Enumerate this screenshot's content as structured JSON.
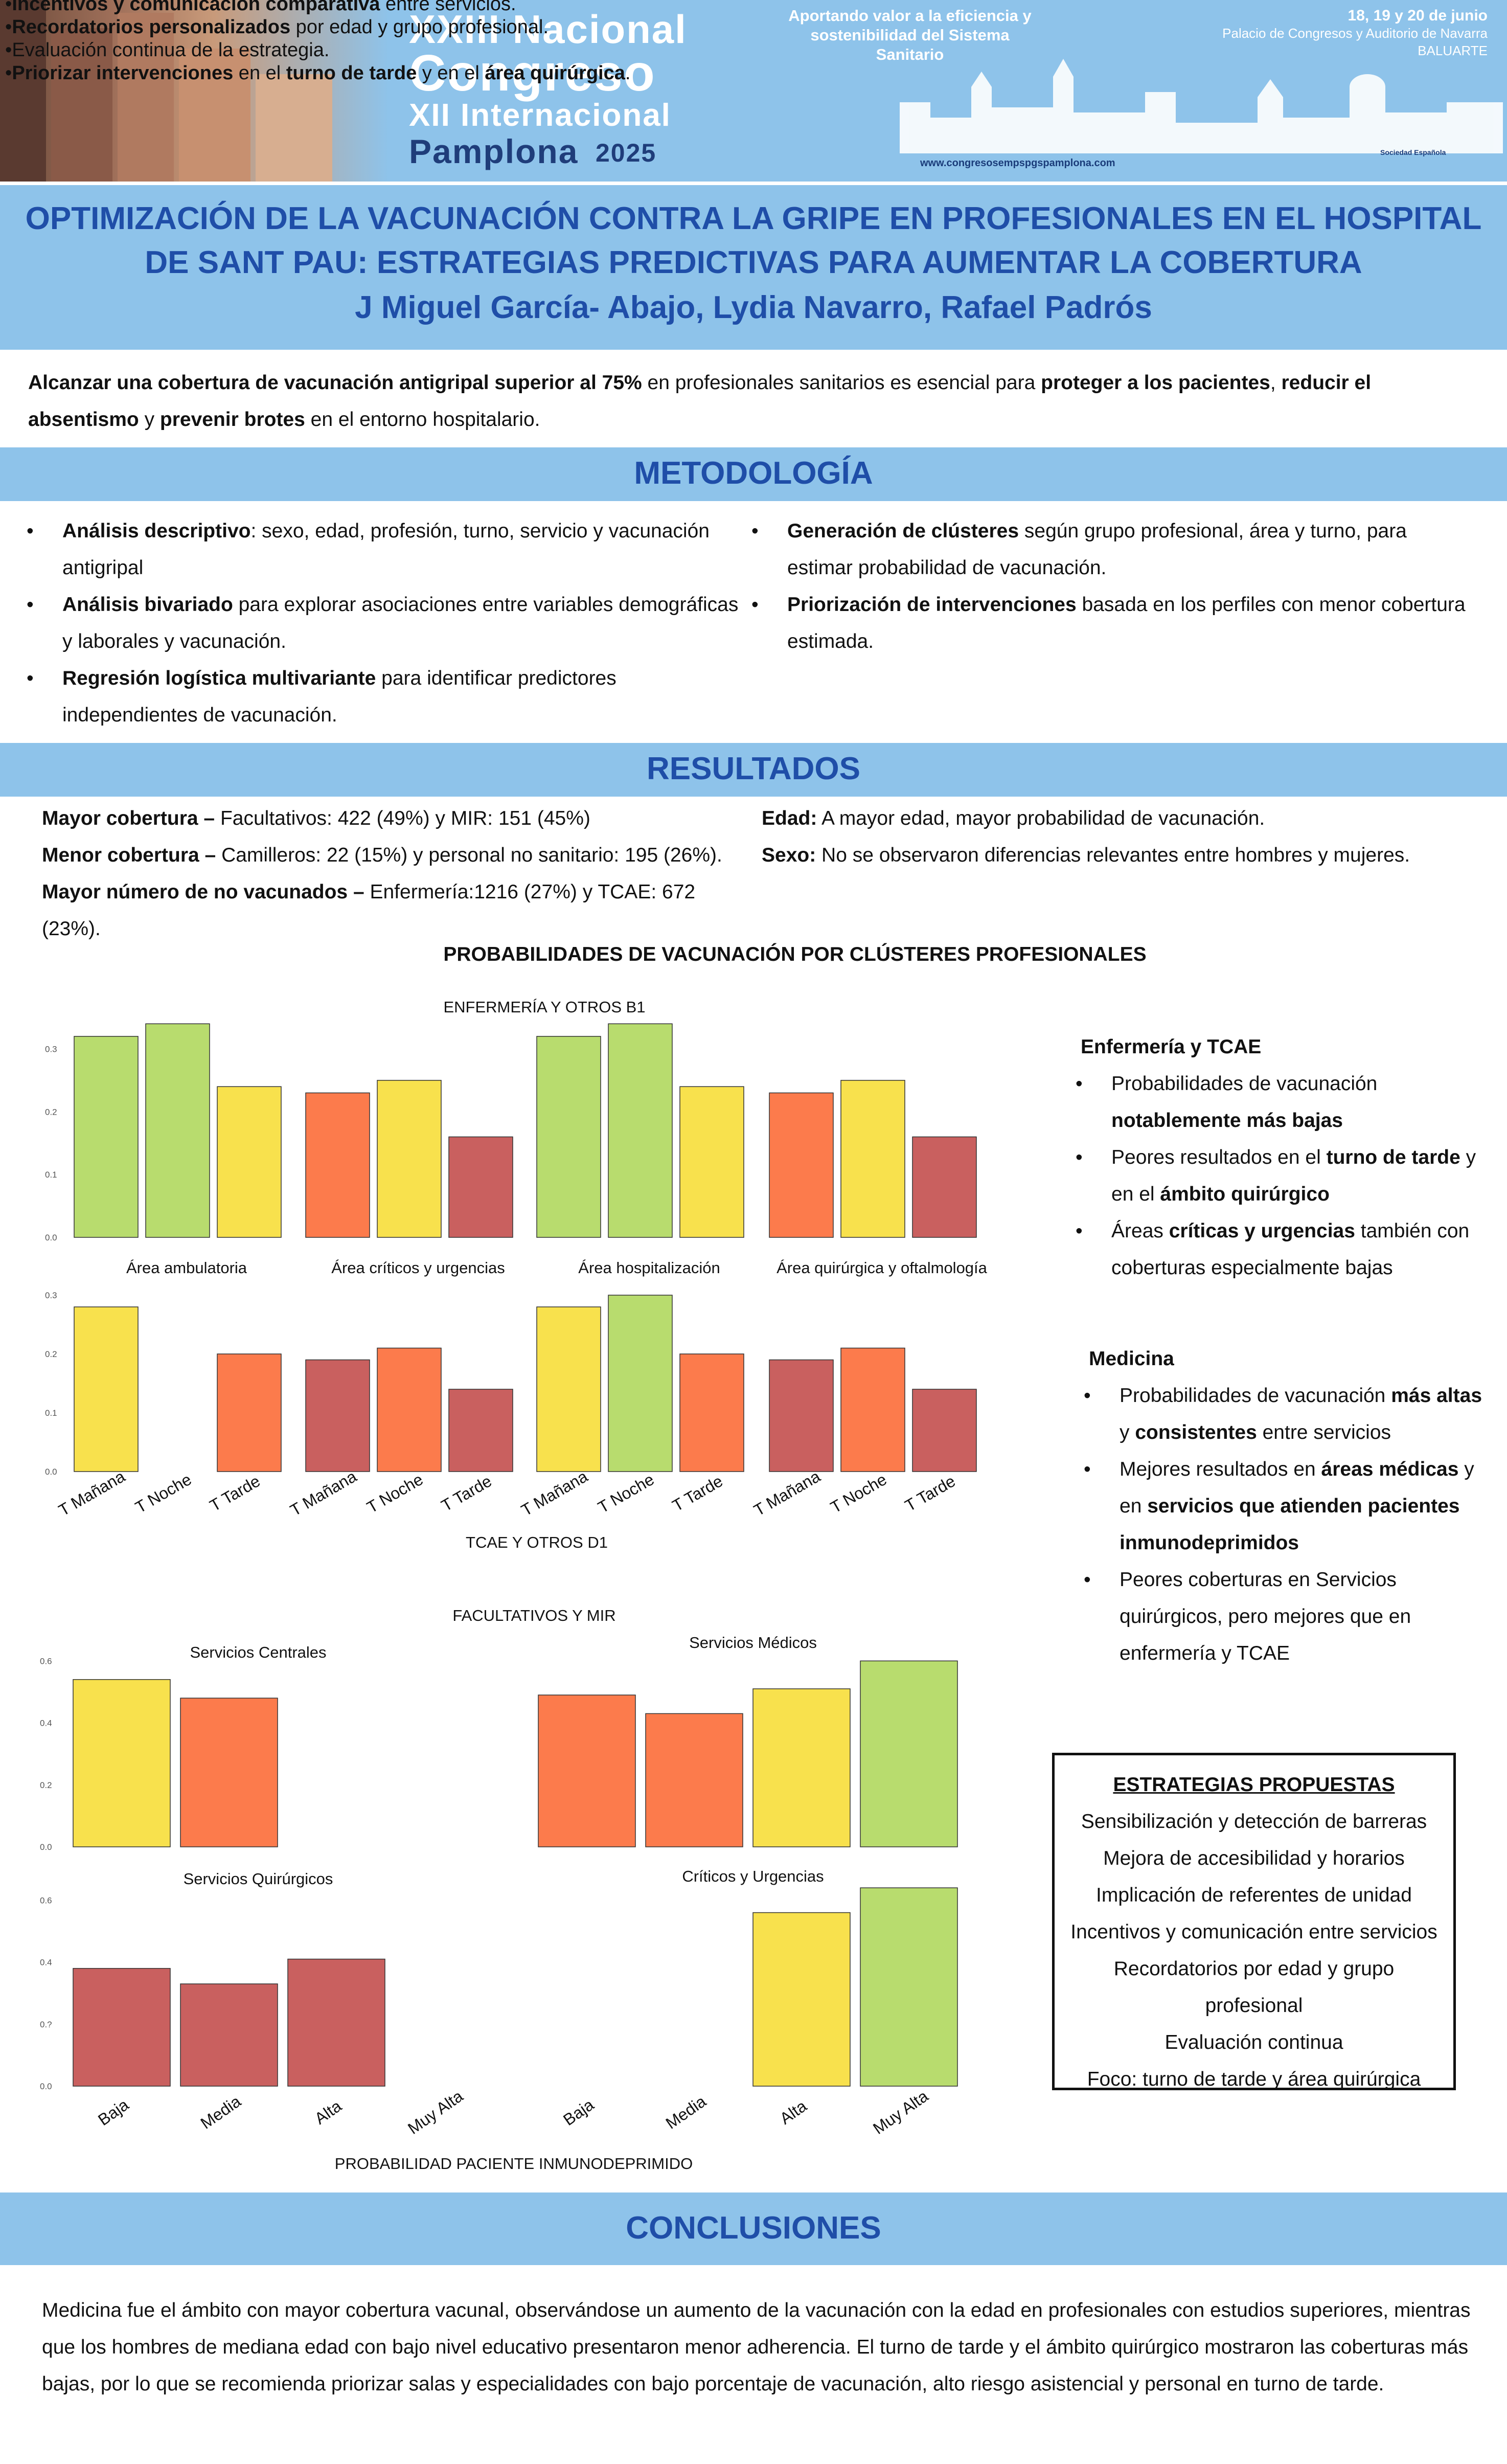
{
  "banner": {
    "overlay_lines": [
      {
        "pre": "•",
        "bold": "Incentivos y comunicación comparativa",
        "post": " entre servicios."
      },
      {
        "pre": "•",
        "bold": "Recordatorios personalizados",
        "post": " por edad y grupo profesional."
      },
      {
        "pre": "•",
        "bold": "",
        "post": "Evaluación continua de la estrategia."
      },
      {
        "pre": "•",
        "bold": "Priorizar intervenciones",
        "post": " en el ",
        "bold2": "turno de tarde",
        "post2": " y en el ",
        "bold3": "área quirúrgica",
        "post3": "."
      }
    ],
    "congress_words": [
      "XXIII Nacional",
      "Congreso",
      "XII Internacional",
      "Pamplona",
      "2025"
    ],
    "slogan": "Aportando valor a la eficiencia y sostenibilidad del Sistema Sanitario",
    "dates": "18, 19 y 20 de junio",
    "venue": "Palacio de Congresos y Auditorio de Navarra BALUARTE",
    "website": "www.congresosempspgspamplona.com",
    "society": "Sociedad Española"
  },
  "title": "OPTIMIZACIÓN DE LA VACUNACIÓN CONTRA LA GRIPE EN PROFESIONALES EN EL HOSPITAL DE SANT PAU: ESTRATEGIAS PREDICTIVAS PARA AUMENTAR LA COBERTURA",
  "authors": "J Miguel García- Abajo, Lydia Navarro, Rafael Padrós",
  "intro": {
    "t1": "Alcanzar una cobertura de vacunación antigripal superior al 75%",
    "t2": " en profesionales sanitarios es esencial para ",
    "t3": "proteger a los pacientes",
    "t4": ", ",
    "t5": "reducir el absentismo",
    "t6": " y ",
    "t7": "prevenir brotes",
    "t8": " en el entorno hospitalario."
  },
  "methodology": {
    "heading": "METODOLOGÍA",
    "left": [
      {
        "bold": "Análisis descriptivo",
        "text": ": sexo, edad, profesión, turno, servicio y vacunación antigripal"
      },
      {
        "bold": "Análisis bivariado",
        "text": " para explorar asociaciones entre variables demográficas y laborales y vacunación."
      },
      {
        "bold": "Regresión logística multivariante",
        "text": " para identificar predictores independientes de vacunación."
      }
    ],
    "right": [
      {
        "bold": "Generación de clústeres",
        "text": " según grupo profesional, área y turno, para estimar probabilidad de vacunación."
      },
      {
        "bold": "Priorización de intervenciones",
        "text": " basada en los perfiles con menor cobertura estimada."
      }
    ]
  },
  "results": {
    "heading": "RESULTADOS",
    "left": [
      {
        "bold": "Mayor cobertura – ",
        "text": "Facultativos: 422 (49%) y MIR: 151 (45%)"
      },
      {
        "bold": "Menor cobertura – ",
        "text": "Camilleros: 22 (15%) y personal no sanitario: 195 (26%)."
      },
      {
        "bold": "Mayor número de no vacunados – ",
        "text": "Enfermería:1216 (27%) y TCAE: 672 (23%)."
      }
    ],
    "right": [
      {
        "bold": "Edad:",
        "text": " A mayor edad, mayor probabilidad de vacunación."
      },
      {
        "bold": "Sexo:",
        "text": " No se observaron diferencias relevantes entre hombres y mujeres."
      }
    ],
    "chart_section_title": "PROBABILIDADES DE VACUNACIÓN POR CLÚSTERES PROFESIONALES"
  },
  "chart_data": [
    {
      "type": "bar",
      "title": "ENFERMERÍA Y OTROS B1",
      "panels": [
        "Área ambulatoria",
        "Área críticos y urgencias",
        "Área hospitalización",
        "Área quirúrgica y oftalmología"
      ],
      "categories": [
        "T Mañana",
        "T Noche",
        "T Tarde"
      ],
      "values": [
        [
          0.32,
          0.34,
          0.24
        ],
        [
          0.23,
          0.25,
          0.16
        ],
        [
          0.32,
          0.34,
          0.24
        ],
        [
          0.23,
          0.25,
          0.16
        ]
      ],
      "colors": [
        [
          "#b8dc6e",
          "#b8dc6e",
          "#f8e14d"
        ],
        [
          "#fc7b4c",
          "#f8e14d",
          "#c9605f"
        ],
        [
          "#b8dc6e",
          "#b8dc6e",
          "#f8e14d"
        ],
        [
          "#fc7b4c",
          "#f8e14d",
          "#c9605f"
        ]
      ],
      "yticks": [
        "0.0",
        "0.1",
        "0.2",
        "0.3"
      ],
      "ylim": [
        0,
        0.35
      ]
    },
    {
      "type": "bar",
      "title": "TCAE Y OTROS D1",
      "categories": [
        "T Mañana",
        "T Noche",
        "T Tarde"
      ],
      "values": [
        [
          0.28,
          null,
          0.2
        ],
        [
          0.19,
          0.21,
          0.14
        ],
        [
          0.28,
          0.3,
          0.2
        ],
        [
          0.19,
          0.21,
          0.14
        ]
      ],
      "colors": [
        [
          "#f8e14d",
          "#f8e14d",
          "#fc7b4c"
        ],
        [
          "#c9605f",
          "#fc7b4c",
          "#c9605f"
        ],
        [
          "#f8e14d",
          "#b8dc6e",
          "#fc7b4c"
        ],
        [
          "#c9605f",
          "#fc7b4c",
          "#c9605f"
        ]
      ],
      "yticks": [
        "0.0",
        "0.1",
        "0.2",
        "0.3"
      ],
      "ylim": [
        0,
        0.32
      ]
    },
    {
      "type": "bar",
      "title": "FACULTATIVOS Y MIR",
      "xlabel": "PROBABILIDAD PACIENTE INMUNODEPRIMIDO",
      "panels": [
        "Servicios Centrales",
        "Servicios Médicos",
        "Servicios Quirúrgicos",
        "Críticos y Urgencias"
      ],
      "categories": [
        "Baja",
        "Media",
        "Alta",
        "Muy Alta"
      ],
      "values": [
        [
          0.54,
          0.48,
          null,
          null
        ],
        [
          0.49,
          0.43,
          0.51,
          0.6
        ],
        [
          0.38,
          0.33,
          0.41,
          null
        ],
        [
          null,
          null,
          0.56,
          0.64
        ]
      ],
      "colors": [
        [
          "#f8e14d",
          "#fc7b4c",
          "",
          ""
        ],
        [
          "#fc7b4c",
          "#fc7b4c",
          "#f8e14d",
          "#b8dc6e"
        ],
        [
          "#c9605f",
          "#c9605f",
          "#c9605f",
          ""
        ],
        [
          "",
          "",
          "#f8e14d",
          "#b8dc6e"
        ]
      ],
      "yticks": [
        "0.0",
        "0.2",
        "0.4",
        "0.6"
      ],
      "yticks_lower": [
        "0.0",
        "0.?",
        "0.4",
        "0.6"
      ],
      "ylim": [
        0,
        0.66
      ]
    }
  ],
  "side": {
    "enf_title": "Enfermería y TCAE",
    "enf_items": [
      [
        {
          "t": "Probabilidades de vacunación "
        },
        {
          "b": "notablemente más bajas"
        }
      ],
      [
        {
          "t": "Peores resultados en el "
        },
        {
          "b": "turno de tarde"
        },
        {
          "t": " y en el "
        },
        {
          "b": "ámbito quirúrgico"
        }
      ],
      [
        {
          "t": "Áreas "
        },
        {
          "b": "críticas y urgencias"
        },
        {
          "t": " también con coberturas especialmente bajas"
        }
      ]
    ],
    "med_title": "Medicina",
    "med_items": [
      [
        {
          "t": "Probabilidades de vacunación "
        },
        {
          "b": "más altas"
        },
        {
          "t": " y "
        },
        {
          "b": "consistentes"
        },
        {
          "t": " entre servicios"
        }
      ],
      [
        {
          "t": "Mejores resultados en "
        },
        {
          "b": "áreas médicas"
        },
        {
          "t": " y en "
        },
        {
          "b": "servicios que atienden pacientes inmunodeprimidos"
        }
      ],
      [
        {
          "t": "Peores coberturas en Servicios quirúrgicos, pero mejores que en enfermería y TCAE"
        }
      ]
    ]
  },
  "strategies": {
    "title": "ESTRATEGIAS PROPUESTAS",
    "items": [
      "Sensibilización y detección de barreras",
      "Mejora de accesibilidad y horarios",
      "Implicación de referentes de unidad",
      "Incentivos y comunicación entre servicios",
      "Recordatorios por edad y grupo profesional",
      "Evaluación continua",
      "Foco: turno de tarde y área quirúrgica"
    ]
  },
  "conclusions": {
    "heading": "CONCLUSIONES",
    "text": "Medicina fue el ámbito con mayor cobertura vacunal, observándose un aumento de la vacunación con la edad en profesionales con estudios superiores, mientras que los hombres de mediana edad con bajo nivel educativo presentaron menor adherencia. El turno de tarde y el ámbito quirúrgico mostraron las coberturas más bajas, por lo que se recomienda priorizar salas y especialidades con bajo porcentaje de vacunación, alto riesgo asistencial y personal en turno de tarde."
  }
}
